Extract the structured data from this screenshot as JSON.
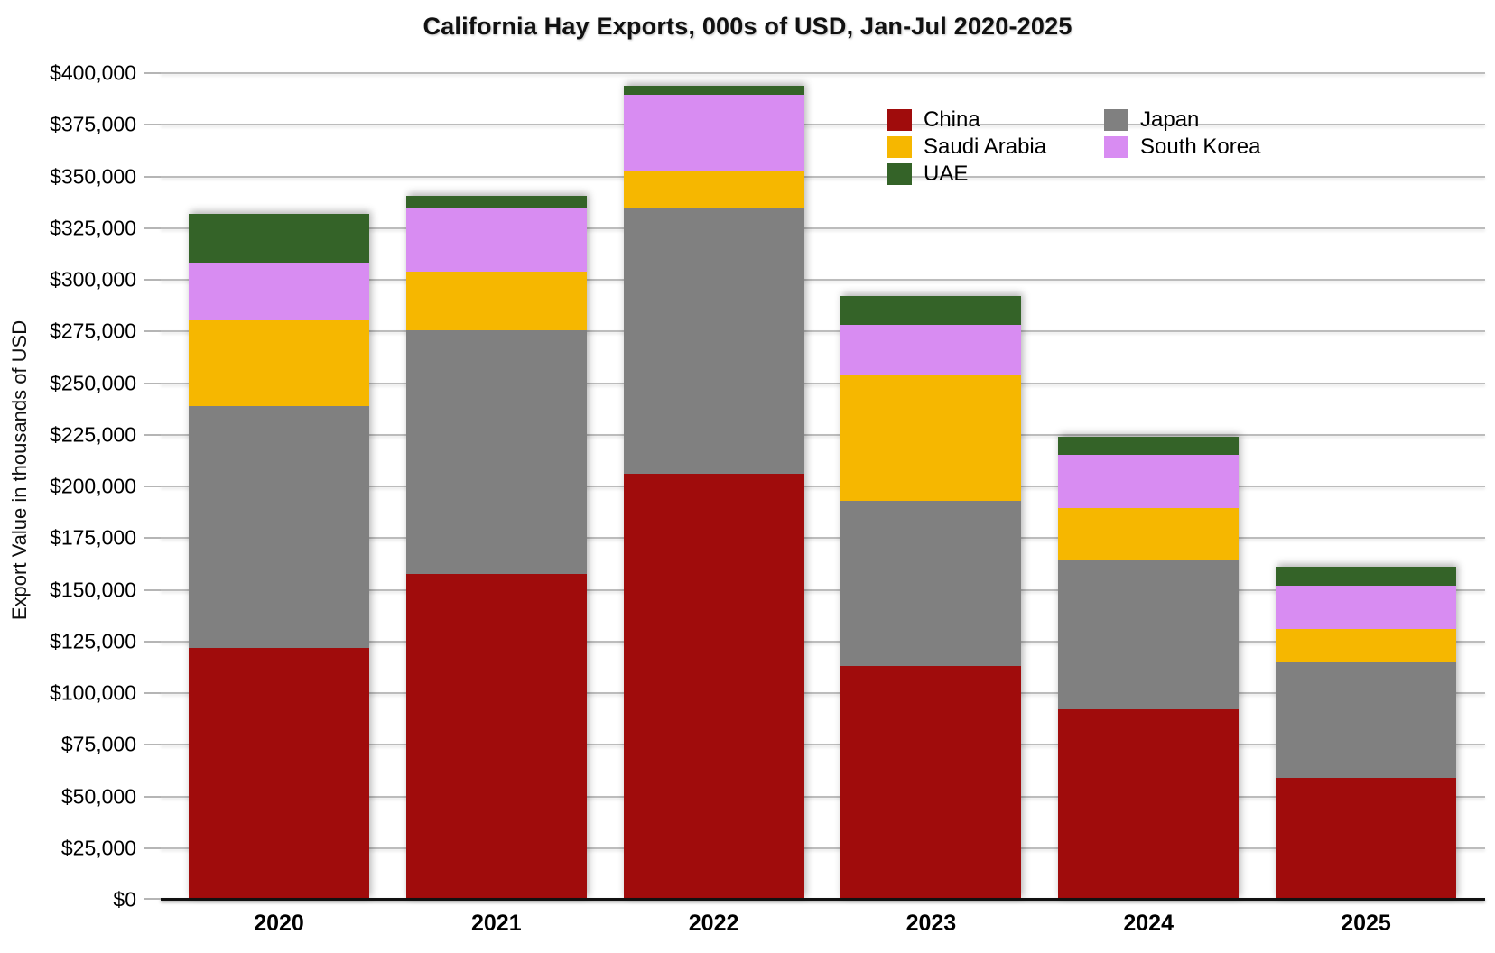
{
  "chart_data": {
    "type": "bar",
    "stacked": true,
    "title": "California Hay Exports, 000s of USD, Jan-Jul 2020-2025",
    "xlabel": "",
    "ylabel": "Export Value in thousands of USD",
    "categories": [
      "2020",
      "2021",
      "2022",
      "2023",
      "2024",
      "2025"
    ],
    "series": [
      {
        "name": "China",
        "color": "#A00C0C",
        "values": [
          122000,
          157500,
          206000,
          113000,
          92000,
          59000
        ]
      },
      {
        "name": "Japan",
        "color": "#808080",
        "values": [
          117000,
          118000,
          128500,
          80000,
          72000,
          56000
        ]
      },
      {
        "name": "Saudi Arabia",
        "color": "#F6B700",
        "values": [
          41500,
          28500,
          18000,
          61000,
          25500,
          16000
        ]
      },
      {
        "name": "South Korea",
        "color": "#D88CF2",
        "values": [
          28000,
          30500,
          37000,
          24000,
          26000,
          21000
        ]
      },
      {
        "name": "UAE",
        "color": "#346328",
        "values": [
          23500,
          6000,
          4500,
          14000,
          8500,
          9000
        ]
      }
    ],
    "stack_totals": [
      332000,
      340500,
      394000,
      292000,
      224000,
      161000
    ],
    "ylim": [
      0,
      400000
    ],
    "ytick_step": 25000,
    "ytick_format": "$#,##0",
    "grid": true,
    "legend_position": "upper-right",
    "legend_column_order": [
      0,
      2,
      4,
      1,
      3
    ]
  }
}
